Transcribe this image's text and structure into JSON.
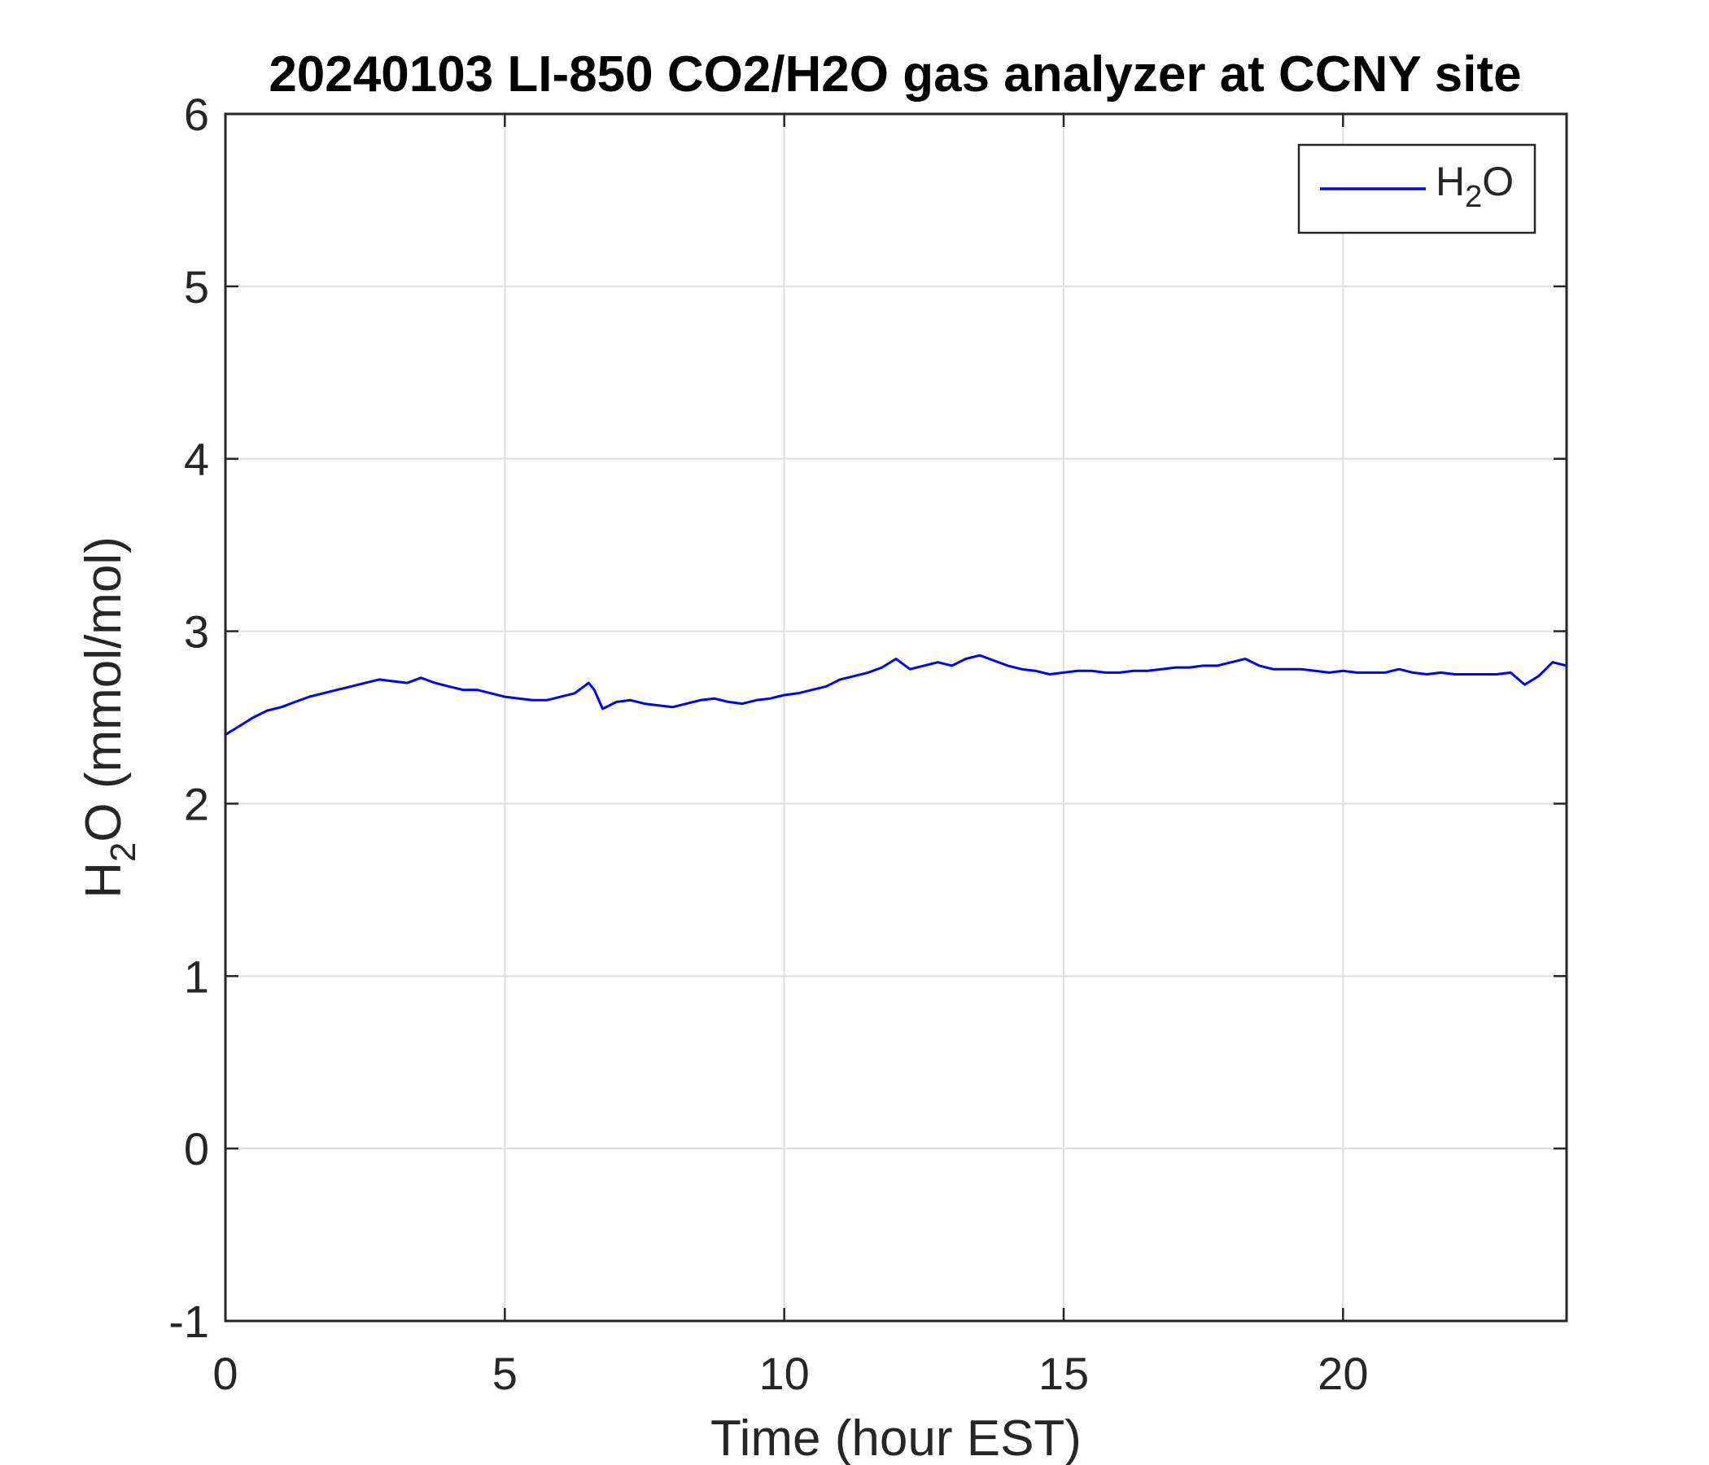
{
  "chart_data": {
    "type": "line",
    "title": "20240103 LI-850 CO2/H2O gas analyzer at CCNY site",
    "xlabel": "Time (hour EST)",
    "ylabel": {
      "main": "H",
      "sub": "2",
      "rest": "O (mmol/mol)"
    },
    "xlim": [
      0,
      24
    ],
    "ylim": [
      -1,
      6
    ],
    "xticks": [
      0,
      5,
      10,
      15,
      20
    ],
    "yticks": [
      -1,
      0,
      1,
      2,
      3,
      4,
      5,
      6
    ],
    "xtick_labels": [
      "0",
      "5",
      "10",
      "15",
      "20"
    ],
    "ytick_labels": [
      "-1",
      "0",
      "1",
      "2",
      "3",
      "4",
      "5",
      "6"
    ],
    "grid": true,
    "legend_position": "top-right",
    "series": [
      {
        "name": {
          "main": "H",
          "sub": "2",
          "rest": "O"
        },
        "color": "#0000ff",
        "x": [
          0,
          0.25,
          0.5,
          0.75,
          1.0,
          1.25,
          1.5,
          1.75,
          2.0,
          2.25,
          2.5,
          2.75,
          3.0,
          3.25,
          3.5,
          3.75,
          4.0,
          4.25,
          4.5,
          4.75,
          5.0,
          5.25,
          5.5,
          5.75,
          6.0,
          6.25,
          6.5,
          6.6,
          6.75,
          7.0,
          7.25,
          7.5,
          7.75,
          8.0,
          8.25,
          8.5,
          8.75,
          9.0,
          9.25,
          9.5,
          9.75,
          10.0,
          10.25,
          10.5,
          10.75,
          11.0,
          11.25,
          11.5,
          11.75,
          12.0,
          12.25,
          12.5,
          12.75,
          13.0,
          13.25,
          13.5,
          13.75,
          14.0,
          14.25,
          14.5,
          14.75,
          15.0,
          15.25,
          15.5,
          15.75,
          16.0,
          16.25,
          16.5,
          16.75,
          17.0,
          17.25,
          17.5,
          17.75,
          18.0,
          18.25,
          18.5,
          18.75,
          19.0,
          19.25,
          19.5,
          19.75,
          20.0,
          20.25,
          20.5,
          20.75,
          21.0,
          21.25,
          21.5,
          21.75,
          22.0,
          22.25,
          22.5,
          22.75,
          23.0,
          23.25,
          23.5,
          23.75,
          24.0
        ],
        "y": [
          2.4,
          2.45,
          2.5,
          2.54,
          2.56,
          2.59,
          2.62,
          2.64,
          2.66,
          2.68,
          2.7,
          2.72,
          2.71,
          2.7,
          2.73,
          2.7,
          2.68,
          2.66,
          2.66,
          2.64,
          2.62,
          2.61,
          2.6,
          2.6,
          2.62,
          2.64,
          2.7,
          2.66,
          2.55,
          2.59,
          2.6,
          2.58,
          2.57,
          2.56,
          2.58,
          2.6,
          2.61,
          2.59,
          2.58,
          2.6,
          2.61,
          2.63,
          2.64,
          2.66,
          2.68,
          2.72,
          2.74,
          2.76,
          2.79,
          2.84,
          2.78,
          2.8,
          2.82,
          2.8,
          2.84,
          2.86,
          2.83,
          2.8,
          2.78,
          2.77,
          2.75,
          2.76,
          2.77,
          2.77,
          2.76,
          2.76,
          2.77,
          2.77,
          2.78,
          2.79,
          2.79,
          2.8,
          2.8,
          2.82,
          2.84,
          2.8,
          2.78,
          2.78,
          2.78,
          2.77,
          2.76,
          2.77,
          2.76,
          2.76,
          2.76,
          2.78,
          2.76,
          2.75,
          2.76,
          2.75,
          2.75,
          2.75,
          2.75,
          2.76,
          2.69,
          2.74,
          2.82,
          2.8
        ]
      }
    ]
  }
}
